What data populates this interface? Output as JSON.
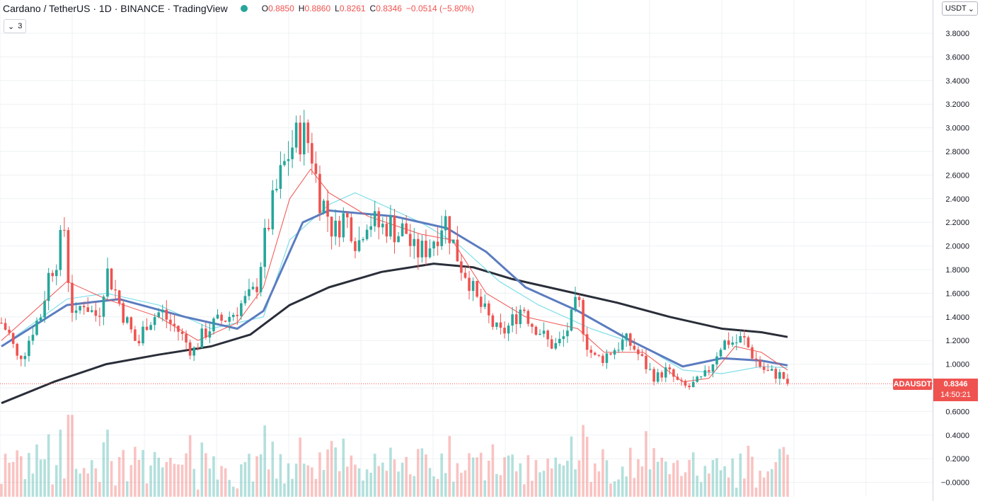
{
  "header": {
    "title": "Cardano / TetherUS · 1D · BINANCE · TradingView",
    "status_color": "#26a69a",
    "open_label": "O",
    "open": "0.8850",
    "high_label": "H",
    "high": "0.8860",
    "low_label": "L",
    "low": "0.8261",
    "close_label": "C",
    "close": "0.8346",
    "change": "−0.0514 (−5.80%)"
  },
  "indicators_toggle": {
    "icon": "chevron-down-icon",
    "count": "3"
  },
  "currency_selector": {
    "label": "USDT",
    "icon": "chevron-down-icon"
  },
  "price_tag": {
    "symbol": "ADAUSDT",
    "price": "0.8346",
    "countdown": "14:50:21",
    "color": "#ef5350"
  },
  "colors": {
    "up": "#26a69a",
    "down": "#ef5350",
    "ma_fast": "#ef5350",
    "ma_mid": "#80deea",
    "ma_slow": "#5b7cc0",
    "ma_long": "#2a2e39",
    "grid": "#eef0f3"
  },
  "chart_data": {
    "type": "candlestick",
    "y_axis_ticks": [
      "3.8000",
      "3.6000",
      "3.4000",
      "3.2000",
      "3.0000",
      "2.8000",
      "2.6000",
      "2.4000",
      "2.2000",
      "2.0000",
      "1.8000",
      "1.6000",
      "1.4000",
      "1.2000",
      "1.0000",
      "0.8000",
      "0.6000",
      "0.4000",
      "0.2000",
      "−0.0000"
    ],
    "ylim": [
      -0.05,
      4.0
    ],
    "last_price": 0.8346,
    "bars": 201,
    "grid": true,
    "volume_overlay": true,
    "close_path": [
      [
        0,
        1.35
      ],
      [
        3,
        1.25
      ],
      [
        6,
        1.05
      ],
      [
        9,
        1.12
      ],
      [
        12,
        1.3
      ],
      [
        15,
        1.42
      ],
      [
        18,
        1.75
      ],
      [
        21,
        1.9
      ],
      [
        24,
        2.15
      ],
      [
        26,
        1.6
      ],
      [
        28,
        1.35
      ],
      [
        31,
        1.55
      ],
      [
        34,
        1.45
      ],
      [
        37,
        1.4
      ],
      [
        40,
        1.8
      ],
      [
        43,
        1.65
      ],
      [
        46,
        1.45
      ],
      [
        49,
        1.3
      ],
      [
        52,
        1.15
      ],
      [
        55,
        1.35
      ],
      [
        58,
        1.4
      ],
      [
        61,
        1.45
      ],
      [
        64,
        1.35
      ],
      [
        67,
        1.3
      ],
      [
        70,
        1.2
      ],
      [
        73,
        1.1
      ],
      [
        76,
        1.22
      ],
      [
        79,
        1.3
      ],
      [
        82,
        1.35
      ],
      [
        85,
        1.38
      ],
      [
        88,
        1.42
      ],
      [
        91,
        1.5
      ],
      [
        94,
        1.55
      ],
      [
        97,
        1.62
      ],
      [
        100,
        2.0
      ],
      [
        103,
        2.3
      ],
      [
        106,
        2.55
      ],
      [
        109,
        2.75
      ],
      [
        112,
        2.9
      ],
      [
        115,
        2.95
      ],
      [
        118,
        2.85
      ],
      [
        121,
        2.45
      ],
      [
        124,
        2.3
      ],
      [
        127,
        2.1
      ],
      [
        130,
        2.25
      ],
      [
        133,
        2.2
      ],
      [
        136,
        2.0
      ],
      [
        139,
        2.25
      ],
      [
        142,
        2.2
      ],
      [
        145,
        2.15
      ],
      [
        148,
        2.2
      ],
      [
        151,
        2.1
      ],
      [
        154,
        2.15
      ],
      [
        157,
        1.95
      ],
      [
        160,
        1.95
      ],
      [
        163,
        2.0
      ],
      [
        166,
        2.1
      ],
      [
        169,
        2.25
      ],
      [
        172,
        2.05
      ],
      [
        175,
        1.85
      ],
      [
        178,
        1.75
      ],
      [
        181,
        1.55
      ],
      [
        184,
        1.45
      ],
      [
        187,
        1.35
      ],
      [
        190,
        1.25
      ],
      [
        193,
        1.3
      ],
      [
        196,
        1.4
      ],
      [
        199,
        1.5
      ],
      [
        202,
        1.35
      ],
      [
        205,
        1.3
      ],
      [
        208,
        1.2
      ],
      [
        211,
        1.15
      ],
      [
        214,
        1.2
      ],
      [
        217,
        1.35
      ],
      [
        220,
        1.55
      ],
      [
        223,
        1.2
      ],
      [
        226,
        1.05
      ],
      [
        229,
        1.05
      ],
      [
        232,
        1.1
      ],
      [
        235,
        1.15
      ],
      [
        238,
        1.2
      ],
      [
        241,
        1.15
      ],
      [
        244,
        1.05
      ],
      [
        247,
        0.95
      ],
      [
        250,
        0.88
      ],
      [
        253,
        0.95
      ],
      [
        256,
        0.9
      ],
      [
        259,
        0.82
      ],
      [
        262,
        0.8
      ],
      [
        265,
        0.84
      ],
      [
        268,
        0.88
      ],
      [
        271,
        1.0
      ],
      [
        274,
        1.15
      ],
      [
        277,
        1.2
      ],
      [
        280,
        1.18
      ],
      [
        283,
        1.22
      ],
      [
        286,
        1.1
      ],
      [
        289,
        1.0
      ],
      [
        292,
        0.93
      ],
      [
        295,
        0.92
      ],
      [
        298,
        0.9
      ],
      [
        300,
        0.8346
      ]
    ],
    "ma_fast_path": [
      [
        0,
        1.2
      ],
      [
        25,
        1.7
      ],
      [
        40,
        1.55
      ],
      [
        60,
        1.4
      ],
      [
        75,
        1.2
      ],
      [
        90,
        1.35
      ],
      [
        100,
        1.65
      ],
      [
        110,
        2.4
      ],
      [
        118,
        2.65
      ],
      [
        125,
        2.45
      ],
      [
        140,
        2.25
      ],
      [
        160,
        2.1
      ],
      [
        172,
        2.05
      ],
      [
        185,
        1.6
      ],
      [
        200,
        1.4
      ],
      [
        220,
        1.3
      ],
      [
        230,
        1.1
      ],
      [
        245,
        1.1
      ],
      [
        260,
        0.85
      ],
      [
        270,
        0.88
      ],
      [
        280,
        1.15
      ],
      [
        290,
        1.1
      ],
      [
        300,
        0.95
      ]
    ],
    "ma_mid_path": [
      [
        0,
        1.15
      ],
      [
        25,
        1.55
      ],
      [
        40,
        1.6
      ],
      [
        60,
        1.5
      ],
      [
        80,
        1.3
      ],
      [
        100,
        1.4
      ],
      [
        110,
        2.05
      ],
      [
        125,
        2.35
      ],
      [
        135,
        2.45
      ],
      [
        145,
        2.35
      ],
      [
        160,
        2.2
      ],
      [
        175,
        2.0
      ],
      [
        190,
        1.7
      ],
      [
        205,
        1.5
      ],
      [
        225,
        1.3
      ],
      [
        245,
        1.15
      ],
      [
        260,
        0.95
      ],
      [
        275,
        0.92
      ],
      [
        290,
        0.98
      ],
      [
        300,
        0.97
      ]
    ],
    "ma_slow_path": [
      [
        0,
        1.15
      ],
      [
        25,
        1.5
      ],
      [
        45,
        1.55
      ],
      [
        70,
        1.4
      ],
      [
        90,
        1.3
      ],
      [
        100,
        1.45
      ],
      [
        115,
        2.2
      ],
      [
        125,
        2.3
      ],
      [
        150,
        2.25
      ],
      [
        170,
        2.15
      ],
      [
        185,
        1.95
      ],
      [
        200,
        1.65
      ],
      [
        220,
        1.45
      ],
      [
        240,
        1.2
      ],
      [
        260,
        0.98
      ],
      [
        275,
        1.05
      ],
      [
        290,
        1.03
      ],
      [
        300,
        0.99
      ]
    ],
    "ma_long_path": [
      [
        0,
        0.67
      ],
      [
        20,
        0.85
      ],
      [
        40,
        1.0
      ],
      [
        60,
        1.08
      ],
      [
        80,
        1.15
      ],
      [
        95,
        1.25
      ],
      [
        110,
        1.5
      ],
      [
        125,
        1.65
      ],
      [
        145,
        1.78
      ],
      [
        165,
        1.85
      ],
      [
        180,
        1.82
      ],
      [
        195,
        1.72
      ],
      [
        215,
        1.62
      ],
      [
        235,
        1.52
      ],
      [
        255,
        1.4
      ],
      [
        275,
        1.3
      ],
      [
        290,
        1.27
      ],
      [
        300,
        1.23
      ]
    ]
  }
}
